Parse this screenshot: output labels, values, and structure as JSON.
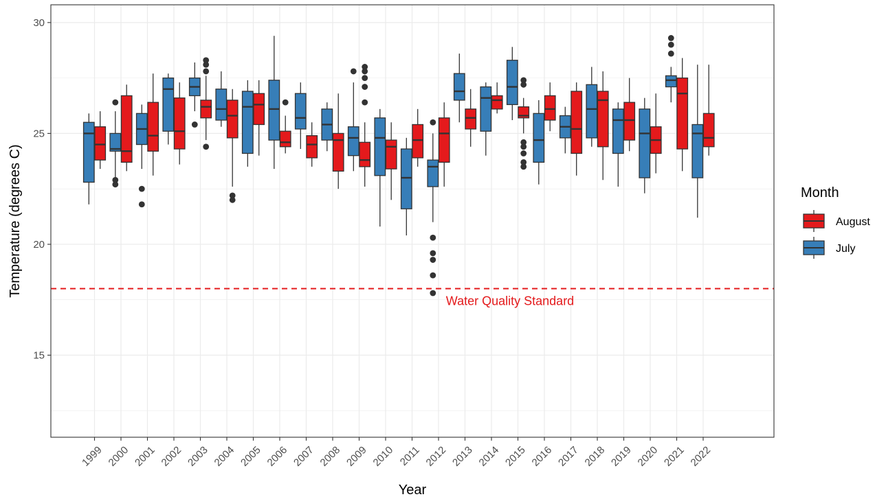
{
  "chart_data": {
    "type": "boxplot",
    "xlabel": "Year",
    "ylabel": "Temperature (degrees C)",
    "ylim": [
      11.3,
      30.8
    ],
    "y_ticks": [
      15,
      20,
      25,
      30
    ],
    "y_tick_labels": [
      "15",
      "20",
      "25",
      "30"
    ],
    "categories": [
      "1999",
      "2000",
      "2001",
      "2002",
      "2003",
      "2004",
      "2005",
      "2006",
      "2007",
      "2008",
      "2009",
      "2010",
      "2011",
      "2012",
      "2013",
      "2014",
      "2015",
      "2016",
      "2017",
      "2018",
      "2019",
      "2020",
      "2021",
      "2022"
    ],
    "grid": true,
    "legend": {
      "title": "Month",
      "position": "right",
      "entries": [
        {
          "label": "August",
          "color": "#e41a1c"
        },
        {
          "label": "July",
          "color": "#377eb8"
        }
      ]
    },
    "reference_line": {
      "y": 18,
      "label": "Water Quality Standard",
      "color": "#e41a1c",
      "style": "dashed"
    },
    "series": [
      {
        "name": "July",
        "color": "#377eb8",
        "boxes": [
          {
            "min": 21.8,
            "q1": 22.8,
            "median": 25.0,
            "q3": 25.5,
            "max": 25.9,
            "outliers": []
          },
          {
            "min": 23.0,
            "q1": 24.2,
            "median": 24.3,
            "q3": 25.0,
            "max": 26.0,
            "outliers": [
              26.4,
              22.9,
              22.7
            ]
          },
          {
            "min": 23.4,
            "q1": 24.5,
            "median": 25.2,
            "q3": 25.9,
            "max": 26.3,
            "outliers": [
              22.5,
              21.8
            ]
          },
          {
            "min": 24.5,
            "q1": 25.1,
            "median": 27.0,
            "q3": 27.5,
            "max": 27.7,
            "outliers": []
          },
          {
            "min": 26.0,
            "q1": 26.7,
            "median": 27.1,
            "q3": 27.5,
            "max": 28.2,
            "outliers": [
              25.4
            ]
          },
          {
            "min": 25.3,
            "q1": 25.6,
            "median": 26.1,
            "q3": 27.0,
            "max": 27.8,
            "outliers": []
          },
          {
            "min": 23.5,
            "q1": 24.1,
            "median": 26.2,
            "q3": 26.9,
            "max": 27.4,
            "outliers": []
          },
          {
            "min": 23.4,
            "q1": 24.7,
            "median": 26.1,
            "q3": 27.4,
            "max": 29.4,
            "outliers": []
          },
          {
            "min": 24.3,
            "q1": 25.2,
            "median": 25.7,
            "q3": 26.8,
            "max": 27.3,
            "outliers": []
          },
          {
            "min": 24.2,
            "q1": 24.7,
            "median": 25.4,
            "q3": 26.1,
            "max": 26.4,
            "outliers": []
          },
          {
            "min": 23.3,
            "q1": 24.0,
            "median": 24.8,
            "q3": 25.3,
            "max": 27.3,
            "outliers": [
              27.8
            ]
          },
          {
            "min": 20.8,
            "q1": 23.1,
            "median": 24.8,
            "q3": 25.7,
            "max": 26.1,
            "outliers": []
          },
          {
            "min": 20.4,
            "q1": 21.6,
            "median": 23.0,
            "q3": 24.3,
            "max": 24.8,
            "outliers": []
          },
          {
            "min": 21.0,
            "q1": 22.6,
            "median": 23.5,
            "q3": 23.8,
            "max": 25.0,
            "outliers": [
              25.5,
              20.3,
              19.6,
              19.3,
              18.6,
              17.8
            ]
          },
          {
            "min": 25.5,
            "q1": 26.5,
            "median": 26.9,
            "q3": 27.7,
            "max": 28.6,
            "outliers": []
          },
          {
            "min": 24.0,
            "q1": 25.1,
            "median": 26.6,
            "q3": 27.1,
            "max": 27.3,
            "outliers": []
          },
          {
            "min": 25.6,
            "q1": 26.3,
            "median": 27.1,
            "q3": 28.3,
            "max": 28.9,
            "outliers": []
          },
          {
            "min": 22.7,
            "q1": 23.7,
            "median": 24.7,
            "q3": 25.9,
            "max": 26.5,
            "outliers": []
          },
          {
            "min": 24.1,
            "q1": 24.8,
            "median": 25.3,
            "q3": 25.8,
            "max": 26.2,
            "outliers": []
          },
          {
            "min": 24.4,
            "q1": 24.8,
            "median": 26.1,
            "q3": 27.2,
            "max": 28.0,
            "outliers": []
          },
          {
            "min": 22.6,
            "q1": 24.1,
            "median": 25.6,
            "q3": 26.1,
            "max": 26.4,
            "outliers": []
          },
          {
            "min": 22.3,
            "q1": 23.0,
            "median": 25.0,
            "q3": 26.1,
            "max": 26.6,
            "outliers": []
          },
          {
            "min": 26.4,
            "q1": 27.1,
            "median": 27.4,
            "q3": 27.6,
            "max": 28.0,
            "outliers": [
              29.3,
              29.0,
              28.6
            ]
          },
          {
            "min": 21.2,
            "q1": 23.0,
            "median": 25.0,
            "q3": 25.4,
            "max": 28.1,
            "outliers": []
          }
        ]
      },
      {
        "name": "August",
        "color": "#e41a1c",
        "boxes": [
          {
            "min": 23.4,
            "q1": 23.8,
            "median": 24.5,
            "q3": 25.3,
            "max": 26.0,
            "outliers": []
          },
          {
            "min": 23.3,
            "q1": 23.7,
            "median": 24.2,
            "q3": 26.7,
            "max": 27.2,
            "outliers": []
          },
          {
            "min": 23.1,
            "q1": 24.2,
            "median": 24.9,
            "q3": 26.4,
            "max": 27.7,
            "outliers": []
          },
          {
            "min": 23.6,
            "q1": 24.3,
            "median": 25.1,
            "q3": 26.6,
            "max": 27.3,
            "outliers": []
          },
          {
            "min": 24.7,
            "q1": 25.7,
            "median": 26.2,
            "q3": 26.5,
            "max": 27.6,
            "outliers": [
              28.3,
              28.1,
              27.8,
              24.4
            ]
          },
          {
            "min": 22.6,
            "q1": 24.8,
            "median": 25.8,
            "q3": 26.5,
            "max": 27.0,
            "outliers": [
              22.2,
              22.0
            ]
          },
          {
            "min": 24.0,
            "q1": 25.4,
            "median": 26.3,
            "q3": 26.8,
            "max": 27.4,
            "outliers": []
          },
          {
            "min": 24.1,
            "q1": 24.4,
            "median": 24.6,
            "q3": 25.1,
            "max": 25.8,
            "outliers": [
              26.4
            ]
          },
          {
            "min": 23.5,
            "q1": 23.9,
            "median": 24.5,
            "q3": 24.9,
            "max": 25.5,
            "outliers": []
          },
          {
            "min": 22.5,
            "q1": 23.3,
            "median": 24.7,
            "q3": 25.0,
            "max": 26.8,
            "outliers": []
          },
          {
            "min": 22.6,
            "q1": 23.5,
            "median": 23.8,
            "q3": 24.6,
            "max": 25.5,
            "outliers": [
              28.0,
              27.8,
              27.5,
              27.1,
              26.4
            ]
          },
          {
            "min": 22.0,
            "q1": 23.4,
            "median": 24.4,
            "q3": 24.7,
            "max": 25.5,
            "outliers": []
          },
          {
            "min": 23.5,
            "q1": 23.9,
            "median": 24.7,
            "q3": 25.4,
            "max": 26.1,
            "outliers": []
          },
          {
            "min": 22.6,
            "q1": 23.7,
            "median": 25.0,
            "q3": 25.7,
            "max": 26.4,
            "outliers": []
          },
          {
            "min": 24.4,
            "q1": 25.2,
            "median": 25.7,
            "q3": 26.1,
            "max": 27.0,
            "outliers": []
          },
          {
            "min": 25.9,
            "q1": 26.1,
            "median": 26.5,
            "q3": 26.7,
            "max": 27.3,
            "outliers": []
          },
          {
            "min": 25.0,
            "q1": 25.7,
            "median": 25.8,
            "q3": 26.2,
            "max": 26.6,
            "outliers": [
              27.4,
              27.2,
              24.6,
              24.4,
              24.1,
              23.7,
              23.5
            ]
          },
          {
            "min": 25.1,
            "q1": 25.6,
            "median": 26.1,
            "q3": 26.7,
            "max": 27.3,
            "outliers": []
          },
          {
            "min": 23.1,
            "q1": 24.1,
            "median": 25.2,
            "q3": 26.9,
            "max": 27.3,
            "outliers": []
          },
          {
            "min": 22.9,
            "q1": 24.4,
            "median": 26.5,
            "q3": 26.9,
            "max": 27.8,
            "outliers": []
          },
          {
            "min": 24.2,
            "q1": 24.7,
            "median": 25.6,
            "q3": 26.4,
            "max": 27.5,
            "outliers": []
          },
          {
            "min": 23.2,
            "q1": 24.1,
            "median": 24.7,
            "q3": 25.3,
            "max": 26.8,
            "outliers": []
          },
          {
            "min": 23.3,
            "q1": 24.3,
            "median": 26.8,
            "q3": 27.5,
            "max": 28.4,
            "outliers": []
          },
          {
            "min": 24.0,
            "q1": 24.4,
            "median": 24.8,
            "q3": 25.9,
            "max": 28.1,
            "outliers": []
          }
        ]
      }
    ]
  }
}
